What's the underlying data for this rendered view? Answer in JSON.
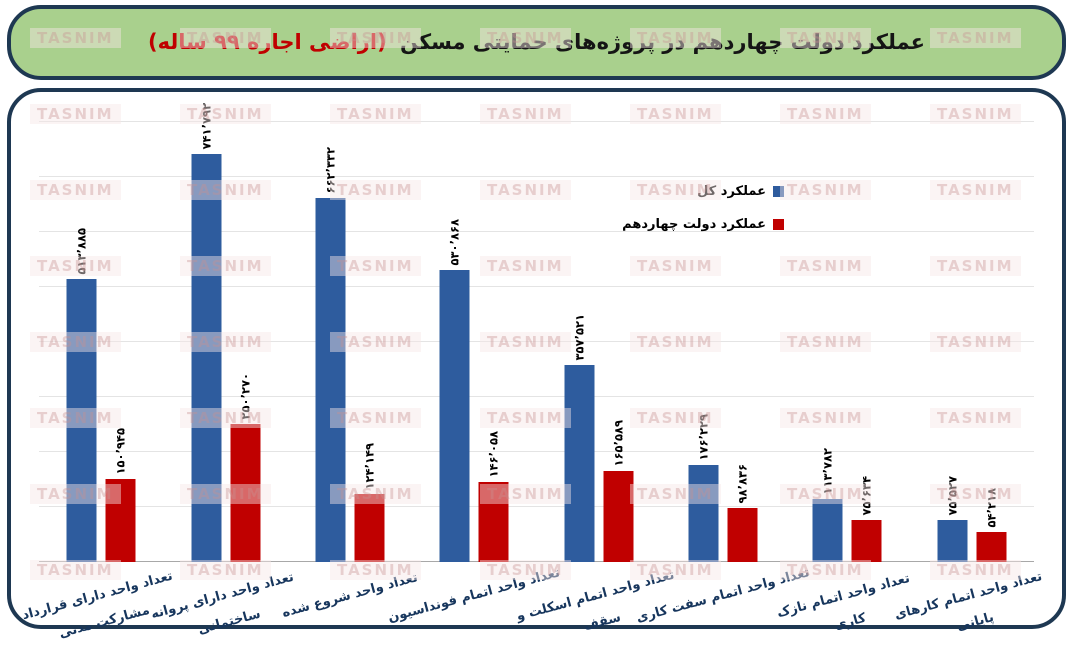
{
  "title": {
    "main": "عملکرد دولت چهاردهم در پروژه‌های حمایتی مسکن",
    "highlight": "(اراضی اجاره ۹۹ ساله)"
  },
  "watermark": "TASNIM",
  "colors": {
    "header_bg": "#a9d08d",
    "frame_border": "#1e3852",
    "series_total": "#2e5c9e",
    "series_gov14": "#c00000",
    "axis_label_text": "#17365d",
    "title_highlight": "#c00000"
  },
  "legend": [
    {
      "label": "عملکرد کل",
      "color": "#2e5c9e"
    },
    {
      "label": "عملکرد دولت چهاردهم",
      "color": "#c00000"
    }
  ],
  "chart_data": {
    "type": "bar",
    "direction": "rtl",
    "title": "عملکرد دولت چهاردهم در پروژه‌های حمایتی مسکن (اراضی اجاره ۹۹ ساله)",
    "xlabel": "",
    "ylabel": "",
    "ylim": [
      0,
      800000
    ],
    "gridline_step": 100000,
    "grid": true,
    "legend_position": "right-inside",
    "categories": [
      {
        "lines": [
          "تعداد واحد دارای قرارداد",
          "مشارکت مدنی"
        ]
      },
      {
        "lines": [
          "تعداد واحد دارای پروانه",
          "ساختمانی"
        ]
      },
      {
        "lines": [
          "تعداد واحد شروع شده"
        ]
      },
      {
        "lines": [
          "تعداد واحد اتمام فونداسیون"
        ]
      },
      {
        "lines": [
          "تعداد واحد اتمام اسکلت و",
          "سقف"
        ]
      },
      {
        "lines": [
          "تعداد واحد اتمام سفت کاری"
        ]
      },
      {
        "lines": [
          "تعداد واحد اتمام نازک",
          "کاری"
        ]
      },
      {
        "lines": [
          "تعداد واحد اتمام کارهای",
          "پایانی"
        ]
      }
    ],
    "series": [
      {
        "name": "عملکرد کل",
        "color": "#2e5c9e",
        "values": [
          513885,
          741792,
          662332,
          530868,
          357521,
          176229,
          113782,
          75527
        ],
        "labels": [
          "۵۱۳٬۸۸۵",
          "۷۴۱٬۷۹۲",
          "۶۶۲٬۳۳۲",
          "۵۳۰٬۸۶۸",
          "۳۵۷٬۵۲۱",
          "۱۷۶٬۲۲۹",
          "۱۱۳٬۷۸۲",
          "۷۵٬۵۲۷"
        ]
      },
      {
        "name": "عملکرد دولت چهاردهم",
        "color": "#c00000",
        "values": [
          150945,
          250270,
          124149,
          146058,
          165589,
          98836,
          75634,
          54218
        ],
        "labels": [
          "۱۵۰٬۹۴۵",
          "۲۵۰٬۲۷۰",
          "۱۲۴٬۱۴۹",
          "۱۴۶٬۰۵۸",
          "۱۶۵٬۵۸۹",
          "۹۸٬۸۳۶",
          "۷۵٬۶۳۴",
          "۵۴٬۲۱۸"
        ]
      }
    ]
  }
}
